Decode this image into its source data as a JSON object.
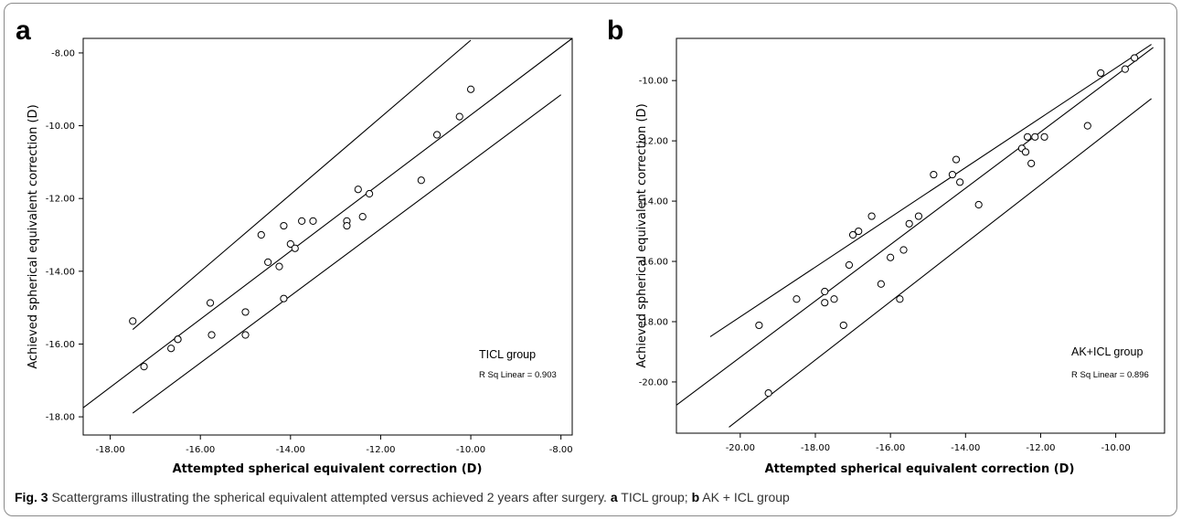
{
  "caption": {
    "fig_label": "Fig. 3",
    "text": " Scattergrams illustrating the spherical equivalent attempted versus achieved 2 years after surgery. ",
    "a_label": "a",
    "a_text": " TICL group; ",
    "b_label": "b",
    "b_text": " AK + ICL group"
  },
  "chart_data": [
    {
      "type": "scatter",
      "panel": "a",
      "xlabel": "Attempted spherical equivalent correction (D)",
      "ylabel": "Achieved spherical equivalent correction (D)",
      "group_label": "TICL group",
      "r2_label": "R Sq Linear = 0.903",
      "xlim": [
        -18.6,
        -7.75
      ],
      "ylim": [
        -18.5,
        -7.6
      ],
      "xticks": [
        -18,
        -16,
        -14,
        -12,
        -10,
        -8
      ],
      "yticks": [
        -18,
        -16,
        -14,
        -12,
        -10,
        -8
      ],
      "xtick_labels": [
        "-18.00",
        "-16.00",
        "-14.00",
        "-12.00",
        "-10.00",
        "-8.00"
      ],
      "ytick_labels": [
        "-18.00",
        "-16.00",
        "-14.00",
        "-12.00",
        "-10.00",
        "-8.00"
      ],
      "points": {
        "x": [
          -17.5,
          -17.25,
          -16.65,
          -16.5,
          -16.5,
          -15.78,
          -15.75,
          -15.0,
          -15.0,
          -14.65,
          -14.5,
          -14.25,
          -14.15,
          -14.15,
          -14.0,
          -13.9,
          -13.75,
          -13.5,
          -12.75,
          -12.75,
          -12.5,
          -12.4,
          -12.25,
          -11.1,
          -10.75,
          -10.25,
          -10.0
        ],
        "y": [
          -15.37,
          -16.62,
          -16.12,
          -15.87,
          -15.87,
          -14.87,
          -15.75,
          -15.12,
          -15.75,
          -13.0,
          -13.75,
          -13.87,
          -12.75,
          -14.75,
          -13.25,
          -13.37,
          -12.62,
          -12.62,
          -12.62,
          -12.75,
          -11.75,
          -12.5,
          -11.87,
          -11.5,
          -10.25,
          -9.75,
          -9.0
        ]
      },
      "fit_line": {
        "x": [
          -18.6,
          -7.75
        ],
        "y": [
          -17.75,
          -7.6
        ]
      },
      "upper_line": {
        "x": [
          -17.5,
          -10.0
        ],
        "y": [
          -15.6,
          -7.65
        ]
      },
      "lower_line": {
        "x": [
          -17.5,
          -8.0
        ],
        "y": [
          -17.9,
          -9.15
        ]
      }
    },
    {
      "type": "scatter",
      "panel": "b",
      "xlabel": "Attempted spherical equivalent correction (D)",
      "ylabel": "Achieved spherical equivalent correction (D)",
      "group_label": "AK+ICL group",
      "r2_label": "R Sq Linear = 0.896",
      "xlim": [
        -21.7,
        -8.7
      ],
      "ylim": [
        -21.7,
        -8.6
      ],
      "xticks": [
        -20,
        -18,
        -16,
        -14,
        -12,
        -10
      ],
      "yticks": [
        -20,
        -18,
        -16,
        -14,
        -12,
        -10
      ],
      "xtick_labels": [
        "-20.00",
        "-18.00",
        "-16.00",
        "-14.00",
        "-12.00",
        "-10.00"
      ],
      "ytick_labels": [
        "-20.00",
        "-18.00",
        "-16.00",
        "-14.00",
        "-12.00",
        "-10.00"
      ],
      "points": {
        "x": [
          -19.5,
          -19.25,
          -18.5,
          -17.75,
          -17.75,
          -17.5,
          -17.25,
          -17.1,
          -17.0,
          -16.85,
          -16.5,
          -16.25,
          -16.0,
          -15.75,
          -15.65,
          -15.5,
          -15.25,
          -14.85,
          -14.35,
          -14.25,
          -14.15,
          -13.65,
          -12.5,
          -12.4,
          -12.35,
          -12.25,
          -12.15,
          -11.9,
          -10.75,
          -10.4,
          -9.75,
          -9.5
        ],
        "y": [
          -18.12,
          -20.37,
          -17.25,
          -17.0,
          -17.37,
          -17.25,
          -18.12,
          -16.12,
          -15.12,
          -15.0,
          -14.5,
          -16.75,
          -15.87,
          -17.25,
          -15.62,
          -14.75,
          -14.5,
          -13.12,
          -13.12,
          -12.62,
          -13.37,
          -14.12,
          -12.25,
          -12.37,
          -11.87,
          -12.75,
          -11.87,
          -11.87,
          -11.5,
          -9.75,
          -9.62,
          -9.25
        ]
      },
      "fit_line": {
        "x": [
          -21.7,
          -9.0
        ],
        "y": [
          -20.77,
          -8.9
        ]
      },
      "upper_line": {
        "x": [
          -20.8,
          -9.05
        ],
        "y": [
          -18.5,
          -8.8
        ]
      },
      "lower_line": {
        "x": [
          -20.3,
          -9.05
        ],
        "y": [
          -21.5,
          -10.6
        ]
      }
    }
  ]
}
